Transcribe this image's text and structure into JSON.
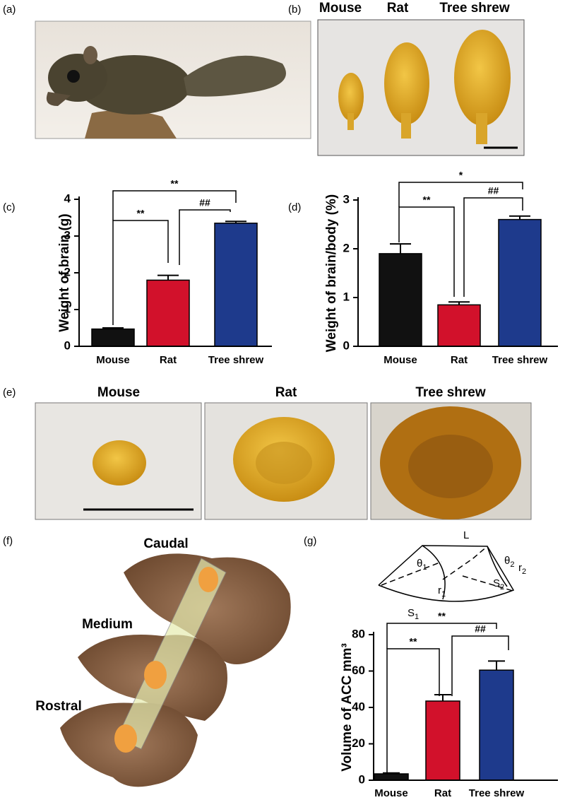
{
  "figure": {
    "panel_labels": [
      "(a)",
      "(b)",
      "(c)",
      "(d)",
      "(e)",
      "(f)",
      "(g)"
    ],
    "b_labels": [
      "Mouse",
      "Rat",
      "Tree shrew"
    ],
    "e_labels": [
      "Mouse",
      "Rat",
      "Tree shrew"
    ],
    "f_labels": [
      "Caudal",
      "Medium",
      "Rostral"
    ],
    "g_diagram": [
      {
        "main": "L",
        "sub": ""
      },
      {
        "main": "θ",
        "sub": "1"
      },
      {
        "main": "θ",
        "sub": "2"
      },
      {
        "main": "r",
        "sub": "1"
      },
      {
        "main": "r",
        "sub": "2"
      },
      {
        "main": "S",
        "sub": "1"
      },
      {
        "main": "S",
        "sub": "2"
      }
    ]
  },
  "chart_data": [
    {
      "type": "bar",
      "ylabel": "Weight of brain (g)",
      "categories": [
        "Mouse",
        "Rat",
        "Tree shrew"
      ],
      "values": [
        0.47,
        1.8,
        3.35
      ],
      "errors": [
        0.03,
        0.13,
        0.05
      ],
      "colors": [
        "#111111",
        "#d2112b",
        "#1e3a8c"
      ],
      "ylim": [
        0,
        4
      ],
      "yticks": [
        0,
        1,
        2,
        3,
        4
      ],
      "annotations": [
        "**",
        "**",
        "##"
      ]
    },
    {
      "type": "bar",
      "ylabel": "Weight of brain/body (%)",
      "categories": [
        "Mouse",
        "Rat",
        "Tree shrew"
      ],
      "values": [
        1.9,
        0.85,
        2.6
      ],
      "errors": [
        0.2,
        0.06,
        0.07
      ],
      "colors": [
        "#111111",
        "#d2112b",
        "#1e3a8c"
      ],
      "ylim": [
        0,
        3
      ],
      "yticks": [
        0,
        1,
        2,
        3
      ],
      "annotations": [
        "*",
        "**",
        "##"
      ]
    },
    {
      "type": "bar",
      "ylabel": "Volume of ACC mm³",
      "categories": [
        "Mouse",
        "Rat",
        "Tree shrew"
      ],
      "values": [
        3.5,
        43.5,
        60.5
      ],
      "errors": [
        0.5,
        3.5,
        5
      ],
      "colors": [
        "#111111",
        "#d2112b",
        "#1e3a8c"
      ],
      "ylim": [
        0,
        80
      ],
      "yticks": [
        0,
        20,
        40,
        60,
        80
      ],
      "annotations": [
        "**",
        "**",
        "##"
      ]
    }
  ]
}
